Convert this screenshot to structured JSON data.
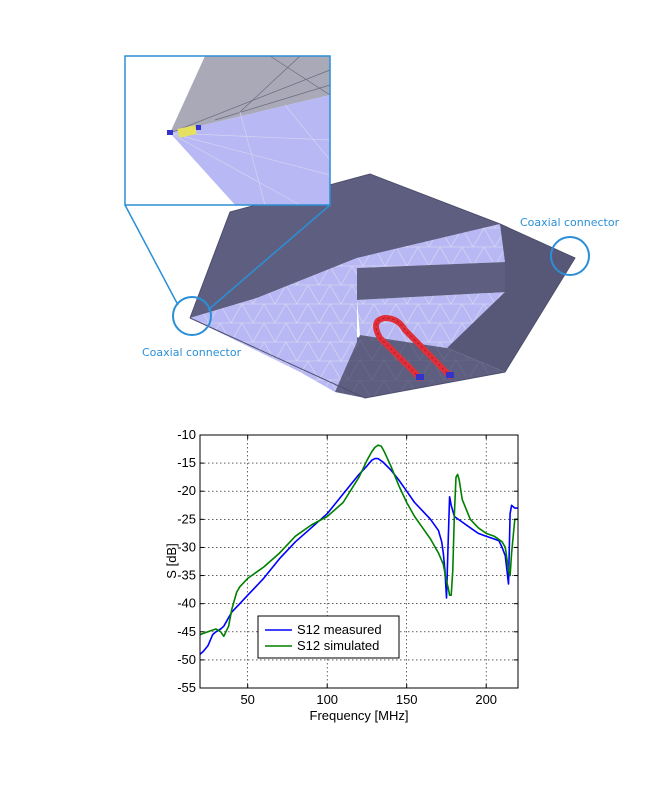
{
  "model": {
    "connector_labels": [
      "Coaxial connector",
      "Coaxial connector"
    ],
    "colors": {
      "face_dark": "#5e5f80",
      "face_light": "#b8b8f4",
      "mesh_line": "#d4d4f2",
      "connector_ring": "#2a8fd6",
      "probe": "#e0303a"
    }
  },
  "chart_data": {
    "type": "line",
    "xlabel": "Frequency [MHz]",
    "ylabel": "S [dB]",
    "xlim": [
      20,
      220
    ],
    "ylim": [
      -55,
      -10
    ],
    "xticks": [
      50,
      100,
      150,
      200
    ],
    "yticks": [
      -10,
      -15,
      -20,
      -25,
      -30,
      -35,
      -40,
      -45,
      -50,
      -55
    ],
    "grid": true,
    "legend_position": "bottom-left",
    "series": [
      {
        "name": "S12 measured",
        "color": "#0000ff",
        "x": [
          20,
          22,
          25,
          28,
          30,
          33,
          35,
          38,
          40,
          45,
          50,
          55,
          60,
          70,
          80,
          90,
          100,
          110,
          120,
          125,
          128,
          130,
          132,
          135,
          140,
          145,
          150,
          155,
          160,
          165,
          170,
          172,
          173,
          174,
          175,
          176,
          177,
          178,
          180,
          185,
          190,
          195,
          200,
          205,
          208,
          210,
          212,
          213,
          214,
          215,
          216,
          218,
          220
        ],
        "y": [
          -49,
          -48.5,
          -47.5,
          -45.5,
          -45,
          -44.5,
          -44,
          -42.5,
          -41.5,
          -40,
          -38.5,
          -37,
          -35.5,
          -32,
          -29,
          -26.5,
          -24,
          -20.5,
          -17,
          -15.5,
          -14.5,
          -14.2,
          -14.2,
          -14.8,
          -16.2,
          -18,
          -20,
          -22,
          -23.5,
          -25,
          -27,
          -29,
          -31,
          -34,
          -39,
          -30,
          -21,
          -22.5,
          -24.5,
          -25.5,
          -26.5,
          -27.5,
          -28,
          -28.5,
          -28.8,
          -30,
          -31.5,
          -34,
          -36.5,
          -24,
          -22.5,
          -23,
          -23
        ]
      },
      {
        "name": "S12 simulated",
        "color": "#008000",
        "x": [
          20,
          25,
          30,
          33,
          35,
          38,
          40,
          43,
          45,
          50,
          55,
          60,
          70,
          80,
          90,
          100,
          110,
          120,
          125,
          128,
          130,
          132,
          134,
          136,
          140,
          145,
          150,
          155,
          160,
          165,
          170,
          173,
          175,
          176,
          177,
          178,
          179,
          180,
          181,
          182,
          183,
          185,
          190,
          195,
          200,
          205,
          210,
          212,
          214,
          215,
          216,
          218,
          220
        ],
        "y": [
          -45.5,
          -45,
          -44.5,
          -45,
          -45.8,
          -44,
          -41,
          -38,
          -37,
          -35.5,
          -34.5,
          -33.5,
          -31,
          -28,
          -26,
          -24.5,
          -22,
          -17.5,
          -14.5,
          -13,
          -12.2,
          -11.8,
          -12,
          -13,
          -15.5,
          -19,
          -22,
          -24.5,
          -26.5,
          -28.5,
          -31,
          -33,
          -36,
          -37,
          -38.5,
          -38.5,
          -34,
          -24,
          -17.5,
          -17,
          -18,
          -21.5,
          -25,
          -26.5,
          -27.5,
          -28,
          -29,
          -30,
          -34,
          -35,
          -31,
          -25,
          -25
        ]
      }
    ]
  }
}
